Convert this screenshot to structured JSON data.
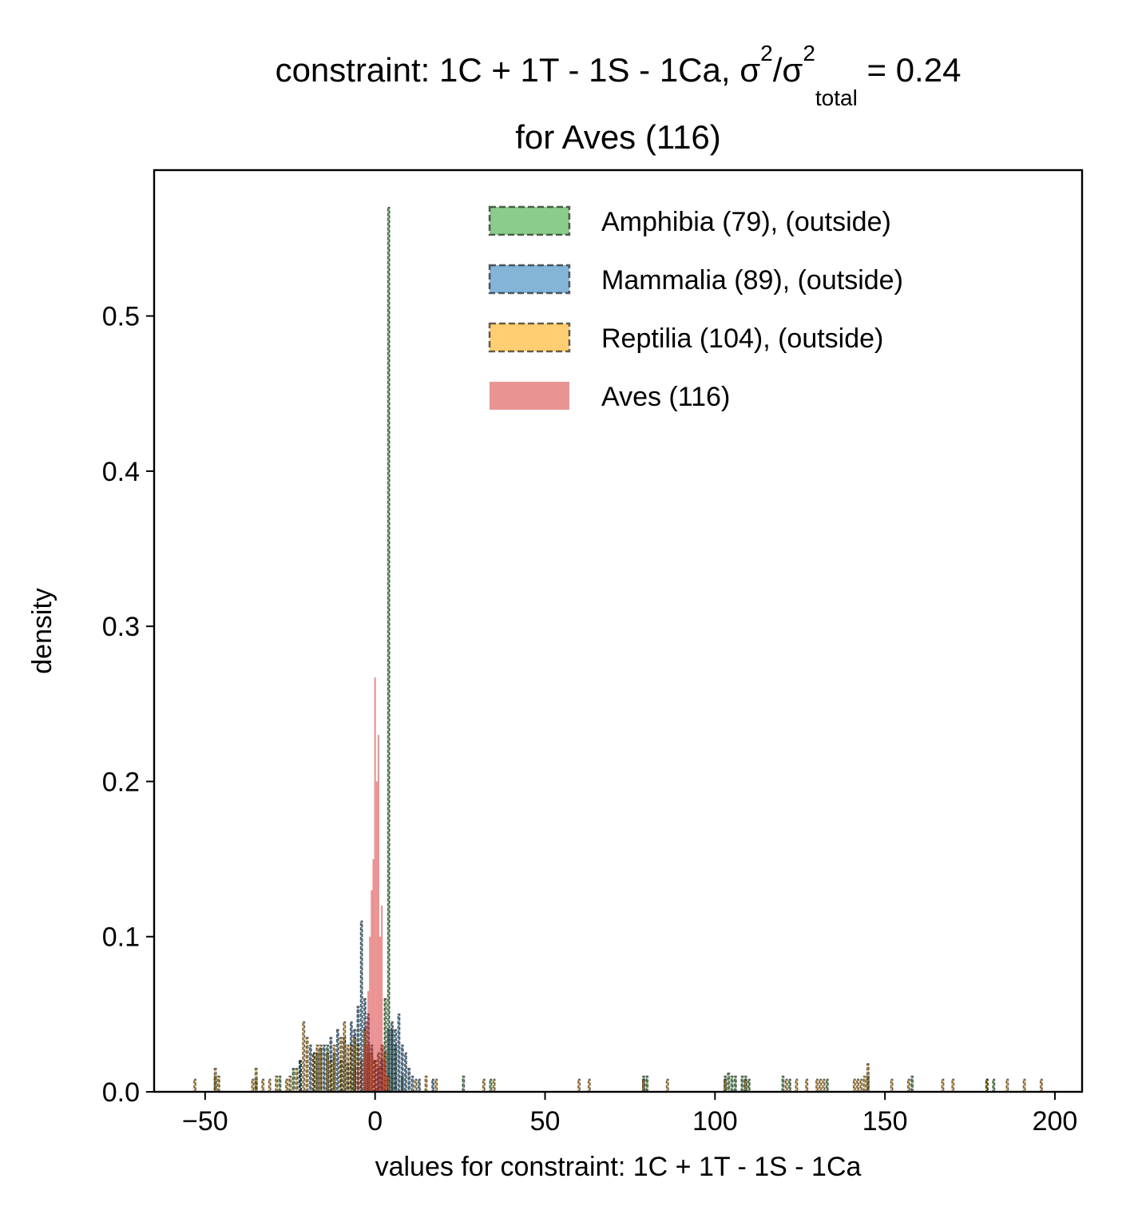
{
  "chart_data": {
    "type": "bar",
    "title": {
      "prefix": "constraint: 1C + 1T - 1S - 1Ca, σ",
      "sup1": "2",
      "slash": "/σ",
      "sup2": "2",
      "sub": "total",
      "suffix": " =  0.24",
      "line2": "for Aves (116)"
    },
    "xlabel": "values for constraint: 1C + 1T - 1S - 1Ca",
    "ylabel": "density",
    "xlim": [
      -65,
      208
    ],
    "ylim": [
      0,
      0.594
    ],
    "x_ticks": [
      {
        "value": -50,
        "label": "−50"
      },
      {
        "value": 0,
        "label": "0"
      },
      {
        "value": 50,
        "label": "50"
      },
      {
        "value": 100,
        "label": "100"
      },
      {
        "value": 150,
        "label": "150"
      },
      {
        "value": 200,
        "label": "200"
      }
    ],
    "y_ticks": [
      {
        "value": 0.0,
        "label": "0.0"
      },
      {
        "value": 0.1,
        "label": "0.1"
      },
      {
        "value": 0.2,
        "label": "0.2"
      },
      {
        "value": 0.3,
        "label": "0.3"
      },
      {
        "value": 0.4,
        "label": "0.4"
      },
      {
        "value": 0.5,
        "label": "0.5"
      }
    ],
    "legend_position": "top-right",
    "bin_width": 0.5,
    "series": [
      {
        "name": "Amphibia (79), (outside)",
        "color": "#2ca02c",
        "style": "dashed",
        "bins": [
          [
            -47,
            0.01
          ],
          [
            -35,
            0.008
          ],
          [
            -28,
            0.01
          ],
          [
            -24,
            0.015
          ],
          [
            -22,
            0.02
          ],
          [
            -18,
            0.025
          ],
          [
            -16,
            0.028
          ],
          [
            -14,
            0.03
          ],
          [
            -12,
            0.025
          ],
          [
            -10,
            0.02
          ],
          [
            -8,
            0.018
          ],
          [
            -6,
            0.015
          ],
          [
            -4,
            0.02
          ],
          [
            -2,
            0.025
          ],
          [
            0,
            0.02
          ],
          [
            1,
            0.025
          ],
          [
            2,
            0.03
          ],
          [
            3,
            0.06
          ],
          [
            4,
            0.57
          ],
          [
            5,
            0.04
          ],
          [
            6,
            0.03
          ],
          [
            8,
            0.01
          ],
          [
            26,
            0.01
          ],
          [
            34,
            0.008
          ],
          [
            79,
            0.01
          ],
          [
            80,
            0.01
          ],
          [
            103,
            0.01
          ],
          [
            104,
            0.012
          ],
          [
            105,
            0.01
          ],
          [
            106,
            0.01
          ],
          [
            108,
            0.01
          ],
          [
            109,
            0.01
          ],
          [
            110,
            0.008
          ],
          [
            120,
            0.01
          ],
          [
            122,
            0.008
          ],
          [
            133,
            0.008
          ],
          [
            145,
            0.01
          ],
          [
            158,
            0.01
          ],
          [
            180,
            0.008
          ],
          [
            182,
            0.008
          ]
        ]
      },
      {
        "name": "Mammalia (89), (outside)",
        "color": "#1f77b4",
        "style": "dashed",
        "bins": [
          [
            -22,
            0.02
          ],
          [
            -19,
            0.03
          ],
          [
            -17,
            0.025
          ],
          [
            -15,
            0.03
          ],
          [
            -13,
            0.035
          ],
          [
            -11,
            0.04
          ],
          [
            -9,
            0.035
          ],
          [
            -7,
            0.045
          ],
          [
            -6,
            0.04
          ],
          [
            -5,
            0.055
          ],
          [
            -4,
            0.11
          ],
          [
            -3,
            0.06
          ],
          [
            -2,
            0.05
          ],
          [
            -1,
            0.03
          ],
          [
            0,
            0.02
          ],
          [
            1,
            0.015
          ],
          [
            2,
            0.02
          ],
          [
            4,
            0.04
          ],
          [
            5,
            0.045
          ],
          [
            6,
            0.04
          ],
          [
            7,
            0.05
          ],
          [
            8,
            0.03
          ],
          [
            9,
            0.025
          ],
          [
            10,
            0.015
          ],
          [
            11,
            0.01
          ],
          [
            13,
            0.008
          ],
          [
            17,
            0.008
          ]
        ]
      },
      {
        "name": "Reptilia (104), (outside)",
        "color": "#ffa500",
        "style": "dashed",
        "bins": [
          [
            -53,
            0.008
          ],
          [
            -47,
            0.015
          ],
          [
            -46,
            0.01
          ],
          [
            -36,
            0.008
          ],
          [
            -35,
            0.015
          ],
          [
            -33,
            0.008
          ],
          [
            -31,
            0.008
          ],
          [
            -29,
            0.01
          ],
          [
            -26,
            0.008
          ],
          [
            -25,
            0.01
          ],
          [
            -23,
            0.015
          ],
          [
            -21,
            0.045
          ],
          [
            -20,
            0.035
          ],
          [
            -18,
            0.025
          ],
          [
            -17,
            0.03
          ],
          [
            -16,
            0.03
          ],
          [
            -14,
            0.025
          ],
          [
            -13,
            0.02
          ],
          [
            -12,
            0.03
          ],
          [
            -10,
            0.035
          ],
          [
            -9,
            0.045
          ],
          [
            -8,
            0.03
          ],
          [
            -7,
            0.03
          ],
          [
            -6,
            0.035
          ],
          [
            -5,
            0.03
          ],
          [
            -3,
            0.04
          ],
          [
            -2,
            0.03
          ],
          [
            -1,
            0.025
          ],
          [
            0,
            0.02
          ],
          [
            2,
            0.015
          ],
          [
            3,
            0.025
          ],
          [
            4,
            0.01
          ],
          [
            12,
            0.008
          ],
          [
            15,
            0.01
          ],
          [
            18,
            0.008
          ],
          [
            32,
            0.008
          ],
          [
            35,
            0.008
          ],
          [
            60,
            0.008
          ],
          [
            63,
            0.008
          ],
          [
            79,
            0.008
          ],
          [
            86,
            0.008
          ],
          [
            103,
            0.008
          ],
          [
            109,
            0.008
          ],
          [
            121,
            0.008
          ],
          [
            124,
            0.008
          ],
          [
            127,
            0.008
          ],
          [
            130,
            0.008
          ],
          [
            131,
            0.008
          ],
          [
            132,
            0.008
          ],
          [
            141,
            0.008
          ],
          [
            142,
            0.008
          ],
          [
            143,
            0.008
          ],
          [
            144,
            0.01
          ],
          [
            145,
            0.018
          ],
          [
            152,
            0.008
          ],
          [
            157,
            0.008
          ],
          [
            167,
            0.008
          ],
          [
            170,
            0.008
          ],
          [
            180,
            0.008
          ],
          [
            186,
            0.008
          ],
          [
            191,
            0.008
          ],
          [
            196,
            0.008
          ]
        ]
      },
      {
        "name": "Aves (116)",
        "color": "#d62728",
        "style": "solid",
        "bins": [
          [
            -5,
            0.015
          ],
          [
            -4,
            0.02
          ],
          [
            -3,
            0.03
          ],
          [
            -2.5,
            0.045
          ],
          [
            -2,
            0.065
          ],
          [
            -1.5,
            0.1
          ],
          [
            -1,
            0.13
          ],
          [
            -0.5,
            0.15
          ],
          [
            0,
            0.267
          ],
          [
            0.5,
            0.2
          ],
          [
            1,
            0.23
          ],
          [
            1.5,
            0.1
          ],
          [
            2,
            0.12
          ],
          [
            2.5,
            0.03
          ],
          [
            3,
            0.02
          ],
          [
            3.5,
            0.01
          ]
        ]
      }
    ]
  }
}
